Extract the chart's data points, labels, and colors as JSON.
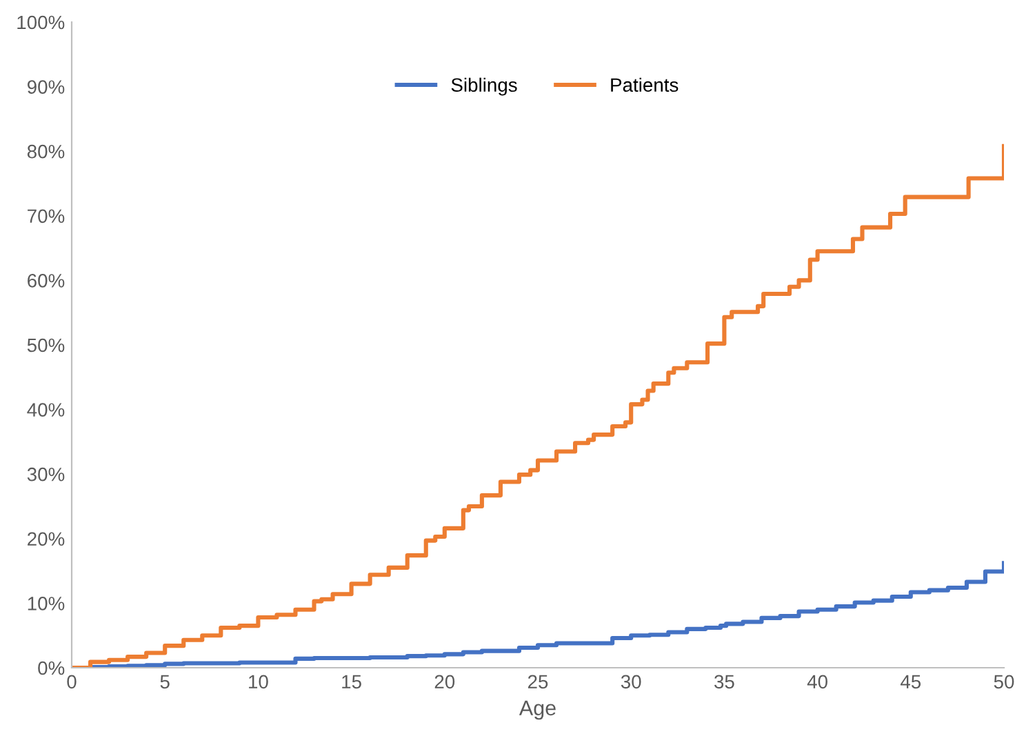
{
  "chart_data": {
    "type": "step",
    "xlabel": "Age",
    "xlim": [
      0,
      50
    ],
    "xticks": [
      0,
      5,
      10,
      15,
      20,
      25,
      30,
      35,
      40,
      45,
      50
    ],
    "ylim": [
      0,
      100
    ],
    "yticks": [
      {
        "value": 0,
        "label": "0%"
      },
      {
        "value": 10,
        "label": "10%"
      },
      {
        "value": 20,
        "label": "20%"
      },
      {
        "value": 30,
        "label": "30%"
      },
      {
        "value": 40,
        "label": "40%"
      },
      {
        "value": 50,
        "label": "50%"
      },
      {
        "value": 60,
        "label": "60%"
      },
      {
        "value": 70,
        "label": "70%"
      },
      {
        "value": 80,
        "label": "80%"
      },
      {
        "value": 90,
        "label": "90%"
      },
      {
        "value": 100,
        "label": "100%"
      }
    ],
    "grid": false,
    "legend": "top",
    "line_style": "solid",
    "marker": "none",
    "series": [
      {
        "name": "Siblings",
        "color": "#4472c4",
        "x": [
          0,
          1,
          2,
          3,
          4,
          5,
          6,
          9,
          12,
          13,
          16,
          18,
          19,
          20,
          21,
          22,
          24,
          25,
          26,
          29,
          30,
          31,
          32,
          33,
          34,
          34.8,
          35.1,
          36,
          37,
          38,
          39,
          40,
          41,
          42,
          43,
          44,
          45,
          46,
          47,
          48,
          49,
          50
        ],
        "values": [
          0,
          0.1,
          0.2,
          0.3,
          0.4,
          0.6,
          0.7,
          0.8,
          1.4,
          1.5,
          1.6,
          1.8,
          1.9,
          2.1,
          2.4,
          2.6,
          3.1,
          3.5,
          3.8,
          4.6,
          5,
          5.1,
          5.5,
          6,
          6.2,
          6.5,
          6.8,
          7.1,
          7.7,
          8,
          8.7,
          9,
          9.5,
          10.1,
          10.4,
          11,
          11.7,
          12,
          12.4,
          13.3,
          14.9,
          16.2
        ]
      },
      {
        "name": "Patients",
        "color": "#ed7d31",
        "x": [
          0,
          1,
          2,
          3,
          4,
          5,
          6,
          7,
          8,
          9,
          10,
          11,
          12,
          13,
          13.4,
          14,
          15,
          16,
          17,
          18,
          19,
          19.5,
          20,
          21,
          21.3,
          22,
          23,
          24,
          24.6,
          25,
          26,
          27,
          27.7,
          28,
          29,
          29.7,
          30,
          30.6,
          30.9,
          31.2,
          32,
          32.3,
          33,
          34.1,
          35,
          35.4,
          36.8,
          37.1,
          38.5,
          39,
          39.6,
          40,
          41.9,
          42.4,
          43.9,
          44.7,
          48.1,
          50
        ],
        "values": [
          0,
          0.9,
          1.2,
          1.7,
          2.3,
          3.4,
          4.3,
          5,
          6.2,
          6.5,
          7.8,
          8.2,
          9,
          10.3,
          10.6,
          11.4,
          13,
          14.4,
          15.5,
          17.4,
          19.7,
          20.3,
          21.6,
          24.4,
          25,
          26.7,
          28.8,
          29.9,
          30.6,
          32.1,
          33.5,
          34.8,
          35.3,
          36.1,
          37.4,
          38,
          40.8,
          41.5,
          42.9,
          44,
          45.7,
          46.4,
          47.3,
          50.2,
          54.3,
          55.1,
          56,
          57.9,
          59,
          60,
          63.2,
          64.5,
          66.4,
          68.2,
          70.3,
          72.9,
          75.8,
          80.8
        ]
      }
    ]
  }
}
